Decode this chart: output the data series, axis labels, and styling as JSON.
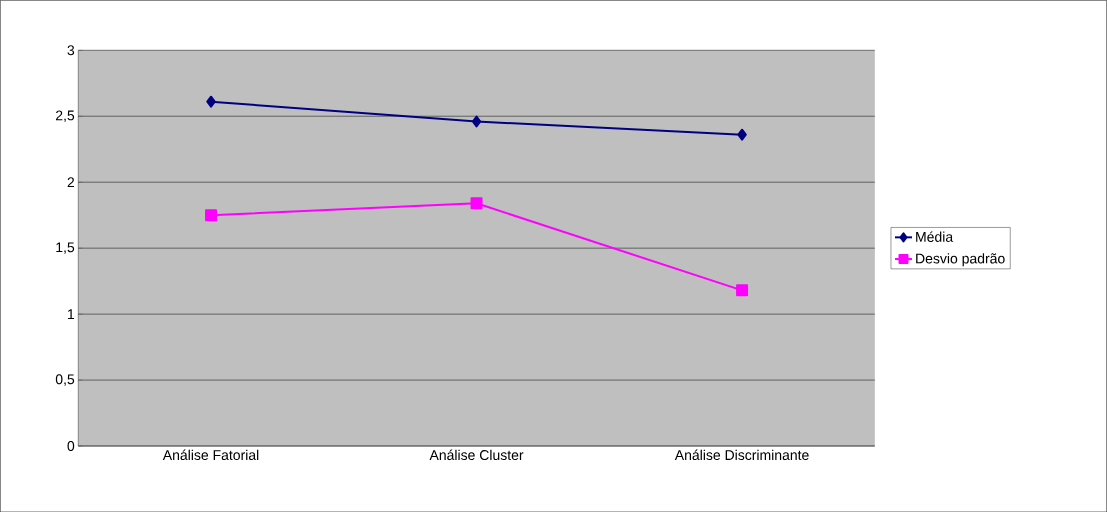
{
  "chart_data": {
    "type": "line",
    "categories": [
      "Análise Fatorial",
      "Análise Cluster",
      "Análise Discriminante"
    ],
    "series": [
      {
        "name": "Média",
        "color": "#000080",
        "marker": "diamond",
        "values": [
          2.61,
          2.46,
          2.36
        ]
      },
      {
        "name": "Desvio padrão",
        "color": "#ff00ff",
        "marker": "square",
        "values": [
          1.75,
          1.84,
          1.18
        ]
      }
    ],
    "ylim": [
      0,
      3
    ],
    "yticks": [
      0,
      {
        "value": 0.5,
        "label": "0,5"
      },
      1,
      {
        "value": 1.5,
        "label": "1,5"
      },
      2,
      {
        "value": 2.5,
        "label": "2,5"
      },
      3
    ],
    "grid": "y",
    "legend": "right",
    "line_style": "solid"
  }
}
